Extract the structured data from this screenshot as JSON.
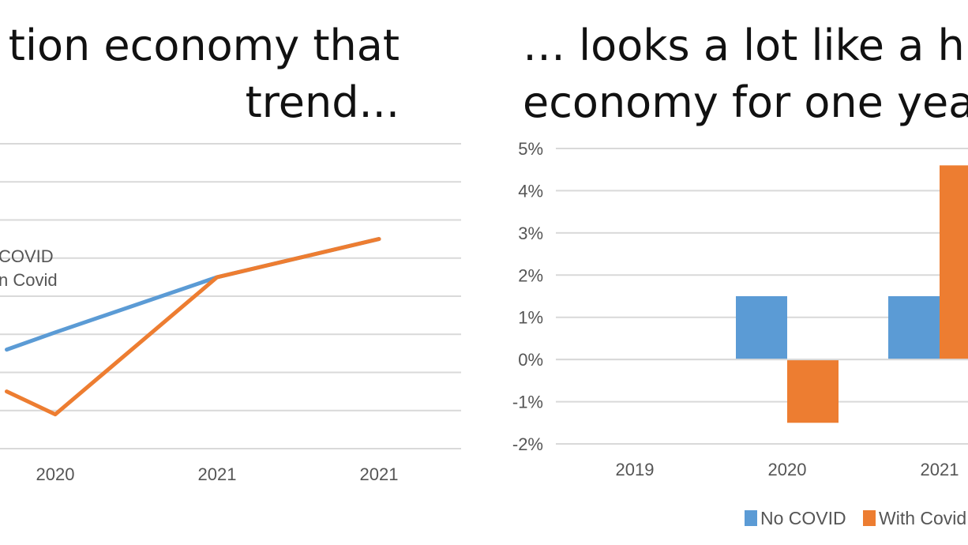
{
  "left_panel": {
    "title_line1": "tion economy that",
    "title_line2": "trend..."
  },
  "right_panel": {
    "title_line1": "… looks a lot like a hi",
    "title_line2": "economy for one yea"
  },
  "chart_data": [
    {
      "type": "line",
      "categories": [
        "2020",
        "2021",
        "2021"
      ],
      "series": [
        {
          "name": "COVID",
          "color": "#5b9bd5",
          "values": [
            null,
            100.5,
            101.5
          ]
        },
        {
          "name": "n Covid",
          "color": "#ed7d31",
          "values": [
            96.9,
            100.5,
            101.5
          ]
        }
      ],
      "hidden_points": {
        "COVID": [
          [
            -0.3,
            98.6
          ],
          [
            0,
            99.05
          ]
        ],
        "n Covid": [
          [
            -0.3,
            97.5
          ]
        ]
      },
      "ylim": [
        96.0,
        104.0
      ],
      "gridlines": 9,
      "grid": true
    },
    {
      "type": "bar",
      "categories": [
        "2019",
        "2020",
        "2021"
      ],
      "series": [
        {
          "name": "No COVID",
          "color": "#5b9bd5",
          "values": [
            0,
            1.5,
            1.5
          ]
        },
        {
          "name": "With Covid",
          "color": "#ed7d31",
          "values": [
            0,
            -1.5,
            4.6
          ]
        }
      ],
      "y_ticks": [
        "5%",
        "4%",
        "3%",
        "2%",
        "1%",
        "0%",
        "-1%",
        "-2%"
      ],
      "ylim": [
        -2,
        5
      ],
      "grid": true,
      "legend": "bottom"
    }
  ]
}
